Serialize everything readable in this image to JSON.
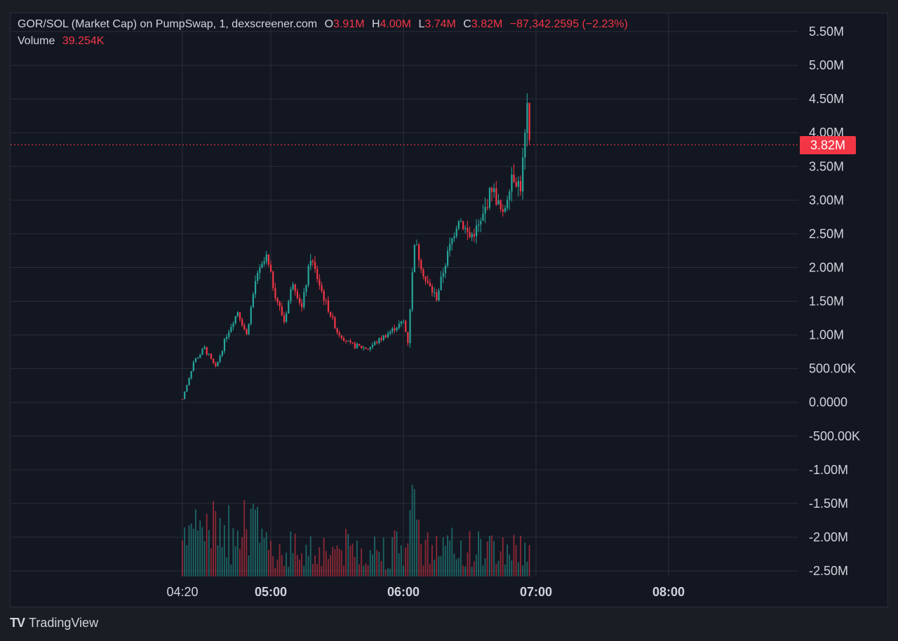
{
  "header": {
    "symbol": "GOR/SOL (Market Cap) on PumpSwap, 1, dexscreener.com",
    "o_label": "O",
    "o_value": "3.91M",
    "h_label": "H",
    "h_value": "4.00M",
    "l_label": "L",
    "l_value": "3.74M",
    "c_label": "C",
    "c_value": "3.82M",
    "change": "−87,342.2595 (−2.23%)",
    "volume_label": "Volume",
    "volume_value": "39.254K"
  },
  "current_price_label": "3.82M",
  "brand": {
    "name": "TradingView"
  },
  "colors": {
    "background": "#131722",
    "up": "#26a69a",
    "down": "#f23645",
    "grid": "#2a2e39",
    "text": "#d1d4dc"
  },
  "chart_data": {
    "type": "candlestick",
    "x_tick_labels": [
      "04:20",
      "05:00",
      "06:00",
      "07:00",
      "08:00"
    ],
    "y_tick_labels": [
      "5.50M",
      "5.00M",
      "4.50M",
      "4.00M",
      "3.50M",
      "3.00M",
      "2.50M",
      "2.00M",
      "1.50M",
      "1.00M",
      "500.00K",
      "0.0000",
      "-500.00K",
      "-1.00M",
      "-1.50M",
      "-2.00M",
      "-2.50M"
    ],
    "y_tick_values": [
      5500000,
      5000000,
      4500000,
      4000000,
      3500000,
      3000000,
      2500000,
      2000000,
      1500000,
      1000000,
      500000,
      0,
      -500000,
      -1000000,
      -1500000,
      -2000000,
      -2500000
    ],
    "ylim": [
      -2500000,
      5500000
    ],
    "xlim_minutes_after_0400": [
      7,
      170
    ],
    "last_price": 3820000,
    "price_trend": {
      "t_minutes_after_0400": [
        20,
        25,
        30,
        35,
        40,
        45,
        49,
        53,
        58,
        62,
        66,
        70,
        74,
        78,
        84,
        90,
        96,
        104,
        112,
        120,
        122,
        125,
        130,
        135,
        140,
        145,
        150,
        155,
        160,
        165,
        169,
        173,
        176,
        177
      ],
      "close_values": [
        50000,
        600000,
        800000,
        500000,
        1000000,
        1350000,
        1000000,
        1800000,
        2150000,
        1600000,
        1200000,
        1800000,
        1400000,
        2150000,
        1550000,
        1050000,
        850000,
        800000,
        1000000,
        1200000,
        900000,
        2400000,
        1800000,
        1550000,
        2200000,
        2750000,
        2450000,
        2650000,
        3200000,
        2750000,
        3400000,
        3200000,
        4300000,
        3820000
      ]
    },
    "volume": {
      "last_value": 39254
    }
  }
}
